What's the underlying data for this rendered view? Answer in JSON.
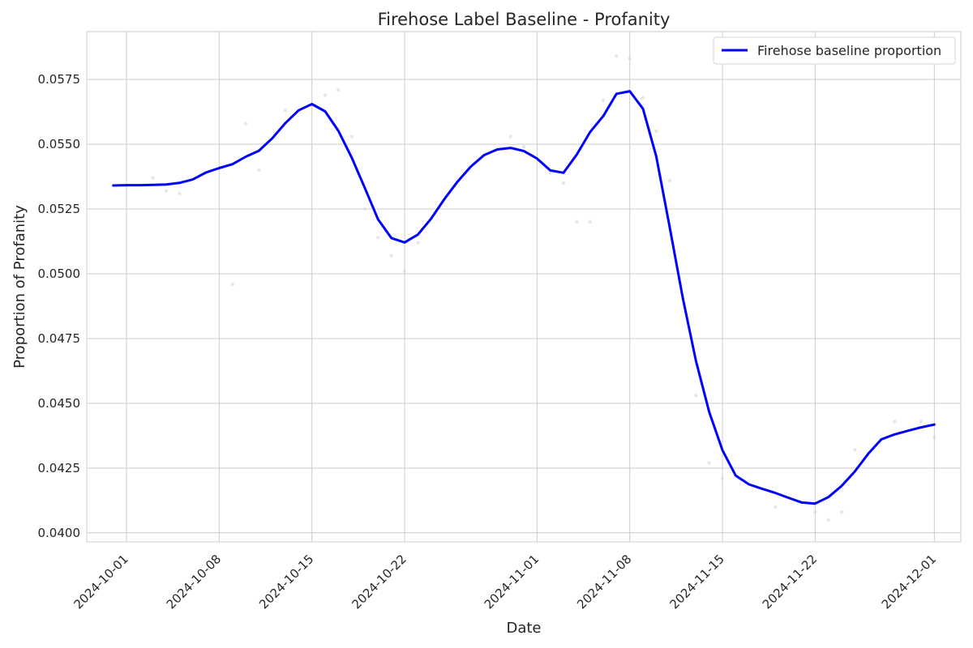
{
  "chart_data": {
    "type": "line",
    "title": "Firehose Label Baseline - Profanity",
    "xlabel": "Date",
    "ylabel": "Proportion of Profanity",
    "xlim": [
      "2024-09-28",
      "2024-12-03"
    ],
    "ylim": [
      0.03965,
      0.05935
    ],
    "grid": true,
    "legend_position": "top-right",
    "line_color": "#0000ff",
    "point_color": "#d3d3d3",
    "x_ticks": [
      "2024-10-01",
      "2024-10-08",
      "2024-10-15",
      "2024-10-22",
      "2024-11-01",
      "2024-11-08",
      "2024-11-15",
      "2024-11-22",
      "2024-12-01"
    ],
    "y_ticks": [
      0.04,
      0.0425,
      0.045,
      0.0475,
      0.05,
      0.0525,
      0.055,
      0.0575
    ],
    "y_tick_labels": [
      "0.0400",
      "0.0425",
      "0.0450",
      "0.0475",
      "0.0500",
      "0.0525",
      "0.0550",
      "0.0575"
    ],
    "series": [
      {
        "name": "Firehose baseline proportion",
        "points": [
          [
            "2024-09-30",
            0.05341
          ],
          [
            "2024-10-01",
            0.05342
          ],
          [
            "2024-10-02",
            0.05342
          ],
          [
            "2024-10-03",
            0.05343
          ],
          [
            "2024-10-04",
            0.05345
          ],
          [
            "2024-10-05",
            0.05351
          ],
          [
            "2024-10-06",
            0.05364
          ],
          [
            "2024-10-07",
            0.05391
          ],
          [
            "2024-10-08",
            0.05408
          ],
          [
            "2024-10-09",
            0.05423
          ],
          [
            "2024-10-10",
            0.05452
          ],
          [
            "2024-10-11",
            0.05475
          ],
          [
            "2024-10-12",
            0.05523
          ],
          [
            "2024-10-13",
            0.05582
          ],
          [
            "2024-10-14",
            0.05631
          ],
          [
            "2024-10-15",
            0.05655
          ],
          [
            "2024-10-16",
            0.05627
          ],
          [
            "2024-10-17",
            0.05552
          ],
          [
            "2024-10-18",
            0.05449
          ],
          [
            "2024-10-19",
            0.05331
          ],
          [
            "2024-10-20",
            0.0521
          ],
          [
            "2024-10-21",
            0.05138
          ],
          [
            "2024-10-22",
            0.05121
          ],
          [
            "2024-10-23",
            0.05151
          ],
          [
            "2024-10-24",
            0.05213
          ],
          [
            "2024-10-25",
            0.05288
          ],
          [
            "2024-10-26",
            0.05356
          ],
          [
            "2024-10-27",
            0.05414
          ],
          [
            "2024-10-28",
            0.05458
          ],
          [
            "2024-10-29",
            0.0548
          ],
          [
            "2024-10-30",
            0.05486
          ],
          [
            "2024-10-31",
            0.05474
          ],
          [
            "2024-11-01",
            0.05445
          ],
          [
            "2024-11-02",
            0.05399
          ],
          [
            "2024-11-03",
            0.0539
          ],
          [
            "2024-11-04",
            0.0546
          ],
          [
            "2024-11-05",
            0.05547
          ],
          [
            "2024-11-06",
            0.05609
          ],
          [
            "2024-11-07",
            0.05695
          ],
          [
            "2024-11-08",
            0.05705
          ],
          [
            "2024-11-09",
            0.05637
          ],
          [
            "2024-11-10",
            0.05454
          ],
          [
            "2024-11-11",
            0.05184
          ],
          [
            "2024-11-12",
            0.04908
          ],
          [
            "2024-11-13",
            0.04664
          ],
          [
            "2024-11-14",
            0.04466
          ],
          [
            "2024-11-15",
            0.04319
          ],
          [
            "2024-11-16",
            0.04221
          ],
          [
            "2024-11-17",
            0.04187
          ],
          [
            "2024-11-18",
            0.0417
          ],
          [
            "2024-11-19",
            0.04154
          ],
          [
            "2024-11-20",
            0.04135
          ],
          [
            "2024-11-21",
            0.04117
          ],
          [
            "2024-11-22",
            0.04113
          ],
          [
            "2024-11-23",
            0.04138
          ],
          [
            "2024-11-24",
            0.04181
          ],
          [
            "2024-11-25",
            0.04237
          ],
          [
            "2024-11-26",
            0.04305
          ],
          [
            "2024-11-27",
            0.04361
          ],
          [
            "2024-11-28",
            0.0438
          ],
          [
            "2024-11-29",
            0.04394
          ],
          [
            "2024-11-30",
            0.04407
          ],
          [
            "2024-12-01",
            0.04418
          ]
        ]
      },
      {
        "name": "",
        "style": "scatter",
        "points": [
          [
            "2024-10-01",
            0.0534
          ],
          [
            "2024-10-03",
            0.0537
          ],
          [
            "2024-10-04",
            0.0532
          ],
          [
            "2024-10-05",
            0.0531
          ],
          [
            "2024-10-09",
            0.0496
          ],
          [
            "2024-10-10",
            0.0558
          ],
          [
            "2024-10-11",
            0.054
          ],
          [
            "2024-10-13",
            0.0563
          ],
          [
            "2024-10-16",
            0.0569
          ],
          [
            "2024-10-17",
            0.0571
          ],
          [
            "2024-10-18",
            0.0553
          ],
          [
            "2024-10-19",
            0.0525
          ],
          [
            "2024-10-20",
            0.0514
          ],
          [
            "2024-10-21",
            0.0507
          ],
          [
            "2024-10-22",
            0.0501
          ],
          [
            "2024-10-23",
            0.0512
          ],
          [
            "2024-10-30",
            0.0553
          ],
          [
            "2024-10-31",
            0.0549
          ],
          [
            "2024-11-02",
            0.0539
          ],
          [
            "2024-11-03",
            0.0535
          ],
          [
            "2024-11-04",
            0.052
          ],
          [
            "2024-11-05",
            0.052
          ],
          [
            "2024-11-06",
            0.0567
          ],
          [
            "2024-11-07",
            0.0584
          ],
          [
            "2024-11-08",
            0.0583
          ],
          [
            "2024-11-09",
            0.0568
          ],
          [
            "2024-11-10",
            0.0555
          ],
          [
            "2024-11-11",
            0.0536
          ],
          [
            "2024-11-13",
            0.0453
          ],
          [
            "2024-11-14",
            0.0427
          ],
          [
            "2024-11-15",
            0.0421
          ],
          [
            "2024-11-19",
            0.041
          ],
          [
            "2024-11-22",
            0.0408
          ],
          [
            "2024-11-23",
            0.0405
          ],
          [
            "2024-11-24",
            0.0408
          ],
          [
            "2024-11-25",
            0.0432
          ],
          [
            "2024-11-28",
            0.0443
          ],
          [
            "2024-11-30",
            0.0443
          ],
          [
            "2024-12-01",
            0.0437
          ]
        ]
      }
    ]
  }
}
